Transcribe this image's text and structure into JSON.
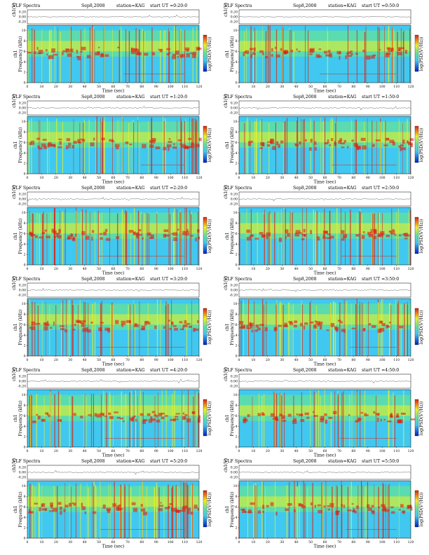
{
  "chart_data": {
    "type": "heatmap",
    "panels": [
      {
        "title": "VLF Spectra",
        "date": "Sep8,2008",
        "station": "station=KAG",
        "start": "start UT =0:20:0"
      },
      {
        "title": "VLF Spectra",
        "date": "Sep8,2008",
        "station": "station=KAG",
        "start": "start UT =0:50:0"
      },
      {
        "title": "VLF Spectra",
        "date": "Sep8,2008",
        "station": "station=KAG",
        "start": "start UT =1:20:0"
      },
      {
        "title": "VLF Spectra",
        "date": "Sep8,2008",
        "station": "station=KAG",
        "start": "start UT =1:50:0"
      },
      {
        "title": "VLF Spectra",
        "date": "Sep8,2008",
        "station": "station=KAG",
        "start": "start UT =2:20:0"
      },
      {
        "title": "VLF Spectra",
        "date": "Sep8,2008",
        "station": "station=KAG",
        "start": "start UT =2:50:0"
      },
      {
        "title": "VLF Spectra",
        "date": "Sep8,2008",
        "station": "station=KAG",
        "start": "start UT =3:20:0"
      },
      {
        "title": "VLF Spectra",
        "date": "Sep8,2008",
        "station": "station=KAG",
        "start": "start UT =3:50:0"
      },
      {
        "title": "VLF Spectra",
        "date": "Sep8,2008",
        "station": "station=KAG",
        "start": "start UT =4:20:0"
      },
      {
        "title": "VLF Spectra",
        "date": "Sep8,2008",
        "station": "station=KAG",
        "start": "start UT =4:50:0"
      },
      {
        "title": "VLF Spectra",
        "date": "Sep8,2008",
        "station": "station=KAG",
        "start": "start UT =5:20:0"
      },
      {
        "title": "VLF Spectra",
        "date": "Sep8,2008",
        "station": "station=KAG",
        "start": "start UT =5:50:0"
      }
    ],
    "waveform_ylabel": "ch1(V)",
    "waveform_ticks": [
      "0.20",
      "0.00",
      "-0.20"
    ],
    "spectrogram_ylabel_line1": "ch1",
    "spectrogram_ylabel_line2": "Frequency (kHz)",
    "colorbar_label": "log(PSD(V²/Hz))",
    "xlabel": "Time (sec)",
    "xticks": [
      0,
      10,
      20,
      30,
      40,
      50,
      60,
      70,
      80,
      90,
      100,
      110,
      120
    ],
    "xlim": [
      0,
      120
    ],
    "yticks": [
      0,
      2,
      4,
      6,
      8,
      10
    ],
    "ylim": [
      0,
      11
    ],
    "colors": {
      "low": "#0020c0",
      "mid_low": "#40c8f0",
      "mid": "#60e0a0",
      "mid_high": "#f0f020",
      "high": "#e02010"
    }
  }
}
